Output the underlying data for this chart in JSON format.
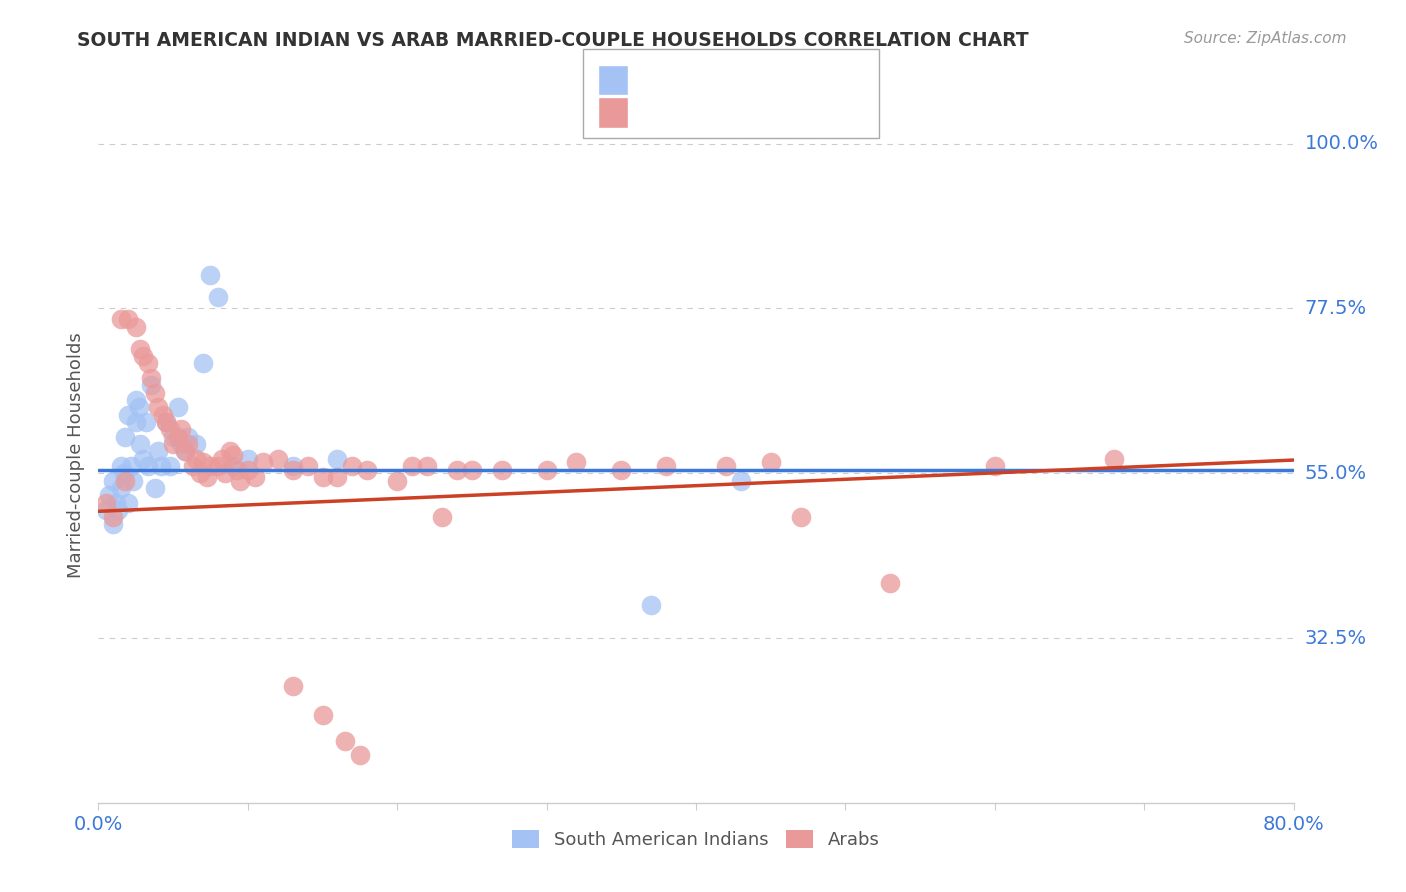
{
  "title": "SOUTH AMERICAN INDIAN VS ARAB MARRIED-COUPLE HOUSEHOLDS CORRELATION CHART",
  "source": "Source: ZipAtlas.com",
  "ylabel": "Married-couple Households",
  "ytick_labels": [
    "100.0%",
    "77.5%",
    "55.0%",
    "32.5%"
  ],
  "ytick_values": [
    1.0,
    0.775,
    0.55,
    0.325
  ],
  "xlim": [
    0.0,
    0.8
  ],
  "ylim": [
    0.1,
    1.05
  ],
  "blue_color": "#a4c2f4",
  "pink_color": "#ea9999",
  "blue_line_color": "#3c78d8",
  "pink_line_color": "#cc4125",
  "grid_color": "#cccccc",
  "title_color": "#333333",
  "source_color": "#999999",
  "axis_label_color": "#555555",
  "tick_label_color": "#3c78d8",
  "legend_text_color": "#3c78d8",
  "blue_scatter_x": [
    0.005,
    0.007,
    0.01,
    0.01,
    0.012,
    0.013,
    0.015,
    0.015,
    0.017,
    0.018,
    0.02,
    0.02,
    0.022,
    0.023,
    0.025,
    0.025,
    0.027,
    0.028,
    0.03,
    0.032,
    0.033,
    0.035,
    0.038,
    0.04,
    0.042,
    0.045,
    0.048,
    0.05,
    0.053,
    0.055,
    0.058,
    0.06,
    0.065,
    0.07,
    0.075,
    0.08,
    0.09,
    0.1,
    0.13,
    0.16,
    0.37,
    0.43
  ],
  "blue_scatter_y": [
    0.5,
    0.52,
    0.48,
    0.54,
    0.51,
    0.5,
    0.53,
    0.56,
    0.55,
    0.6,
    0.51,
    0.63,
    0.56,
    0.54,
    0.62,
    0.65,
    0.64,
    0.59,
    0.57,
    0.62,
    0.56,
    0.67,
    0.53,
    0.58,
    0.56,
    0.62,
    0.56,
    0.6,
    0.64,
    0.59,
    0.58,
    0.6,
    0.59,
    0.7,
    0.82,
    0.79,
    0.56,
    0.57,
    0.56,
    0.57,
    0.37,
    0.54
  ],
  "pink_scatter_x": [
    0.005,
    0.01,
    0.015,
    0.018,
    0.02,
    0.025,
    0.028,
    0.03,
    0.033,
    0.035,
    0.038,
    0.04,
    0.043,
    0.045,
    0.048,
    0.05,
    0.053,
    0.055,
    0.058,
    0.06,
    0.063,
    0.065,
    0.068,
    0.07,
    0.073,
    0.075,
    0.08,
    0.083,
    0.085,
    0.088,
    0.09,
    0.093,
    0.095,
    0.1,
    0.105,
    0.11,
    0.12,
    0.13,
    0.14,
    0.15,
    0.16,
    0.17,
    0.18,
    0.2,
    0.21,
    0.22,
    0.23,
    0.24,
    0.25,
    0.27,
    0.3,
    0.32,
    0.35,
    0.38,
    0.42,
    0.45,
    0.47,
    0.53,
    0.6,
    0.68,
    0.13,
    0.15,
    0.165,
    0.175
  ],
  "pink_scatter_y": [
    0.51,
    0.49,
    0.76,
    0.54,
    0.76,
    0.75,
    0.72,
    0.71,
    0.7,
    0.68,
    0.66,
    0.64,
    0.63,
    0.62,
    0.61,
    0.59,
    0.6,
    0.61,
    0.58,
    0.59,
    0.56,
    0.57,
    0.55,
    0.565,
    0.545,
    0.56,
    0.56,
    0.57,
    0.55,
    0.58,
    0.575,
    0.555,
    0.54,
    0.555,
    0.545,
    0.565,
    0.57,
    0.555,
    0.56,
    0.545,
    0.545,
    0.56,
    0.555,
    0.54,
    0.56,
    0.56,
    0.49,
    0.555,
    0.555,
    0.555,
    0.555,
    0.565,
    0.555,
    0.56,
    0.56,
    0.565,
    0.49,
    0.4,
    0.56,
    0.57,
    0.26,
    0.22,
    0.185,
    0.165
  ]
}
